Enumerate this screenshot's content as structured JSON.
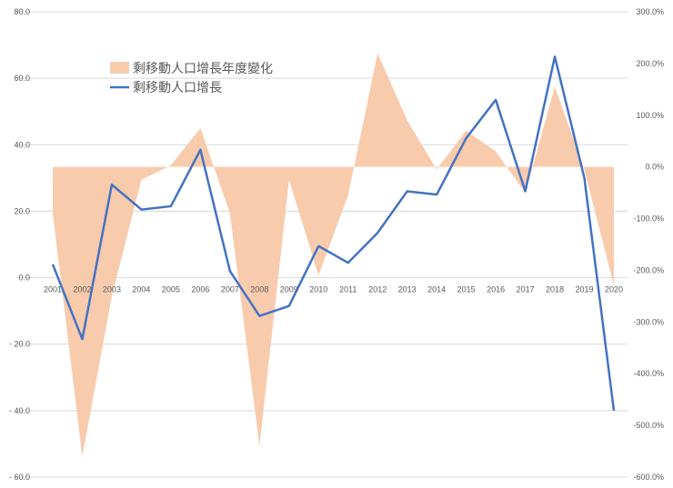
{
  "chart_data": {
    "type": "line",
    "x": [
      "2001",
      "2002",
      "2003",
      "2004",
      "2005",
      "2006",
      "2007",
      "2008",
      "2009",
      "2010",
      "2011",
      "2012",
      "2013",
      "2014",
      "2015",
      "2016",
      "2017",
      "2018",
      "2019",
      "2020"
    ],
    "series": [
      {
        "name": "剩移動人口增長年度變化",
        "type": "area",
        "axis": "right",
        "unit": "%",
        "color": "#F8CBAD",
        "values": [
          -90.0,
          -560.0,
          -250.0,
          -25.0,
          3.0,
          75.0,
          -90.0,
          -540.0,
          -25.0,
          -210.0,
          -55.0,
          220.0,
          90.0,
          -5.0,
          70.0,
          30.0,
          -50.0,
          155.0,
          -5.0,
          -230.0
        ]
      },
      {
        "name": "剩移動人口增長",
        "type": "line",
        "axis": "left",
        "color": "#4472C4",
        "values": [
          4.0,
          -18.5,
          28.0,
          20.5,
          21.5,
          38.5,
          2.0,
          -11.5,
          -8.5,
          9.5,
          4.5,
          13.5,
          26.0,
          25.0,
          42.0,
          53.5,
          26.0,
          66.5,
          30.0,
          -40.0
        ]
      }
    ],
    "left_axis": {
      "ylim": [
        -60,
        80
      ],
      "ticks": [
        {
          "v": 80,
          "label": "80.0"
        },
        {
          "v": 60,
          "label": "60.0"
        },
        {
          "v": 40,
          "label": "40.0"
        },
        {
          "v": 20,
          "label": "20.0"
        },
        {
          "v": 0,
          "label": "0.0"
        },
        {
          "v": -20,
          "label": "- 20.0"
        },
        {
          "v": -40,
          "label": "- 40.0"
        },
        {
          "v": -60,
          "label": "- 60.0"
        }
      ]
    },
    "right_axis": {
      "ylim": [
        -600,
        300
      ],
      "ticks": [
        {
          "v": 300,
          "label": "300.0%"
        },
        {
          "v": 200,
          "label": "200.0%"
        },
        {
          "v": 100,
          "label": "100.0%"
        },
        {
          "v": 0,
          "label": "0.0%"
        },
        {
          "v": -100,
          "label": "-100.0%"
        },
        {
          "v": -200,
          "label": "-200.0%"
        },
        {
          "v": -300,
          "label": "-300.0%"
        },
        {
          "v": -400,
          "label": "-400.0%"
        },
        {
          "v": -500,
          "label": "-500.0%"
        },
        {
          "v": -600,
          "label": "-600.0%"
        }
      ]
    },
    "grid": true,
    "legend": "top-left"
  }
}
